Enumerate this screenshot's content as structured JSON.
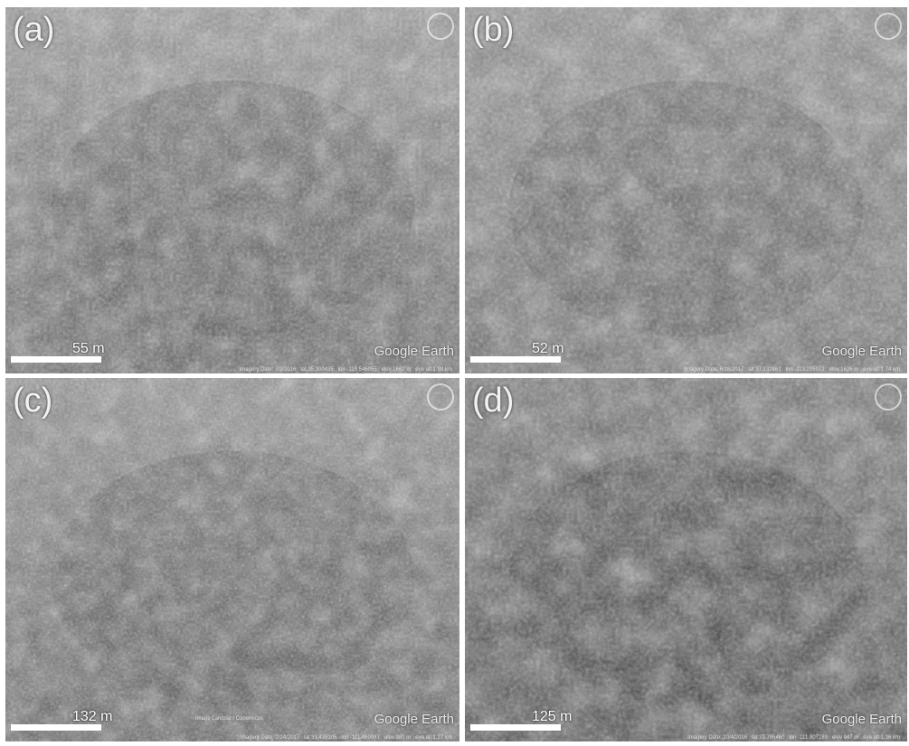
{
  "panels": [
    {
      "label": "(a)",
      "scale": "55 m",
      "watermark": "Google Earth",
      "info": "Imagery Date: 7/2/2016   lat 35.300435   lon -115.546055   elev 1662 m   eye alt 1.99 km"
    },
    {
      "label": "(b)",
      "scale": "52 m",
      "watermark": "Google Earth",
      "info": "Imagery Date: 6/18/2017   lat 37.132461   lon -113.205972   elev 1626 m   eye alt 1.74 km"
    },
    {
      "label": "(c)",
      "scale": "132 m",
      "watermark": "Google Earth",
      "credit": "Image Landsat / Copernicus",
      "info": "Imagery Date: 2/24/2017   lat 33.435105   lon -111.460987   elev 981 m   eye alt 1.27 km"
    },
    {
      "label": "(d)",
      "scale": "125 m",
      "watermark": "Google Earth",
      "info": "Imagery Date: 10/4/2016   lat 33.786460   lon -111.807289   elev 947 m   eye alt 1.36 km"
    }
  ]
}
